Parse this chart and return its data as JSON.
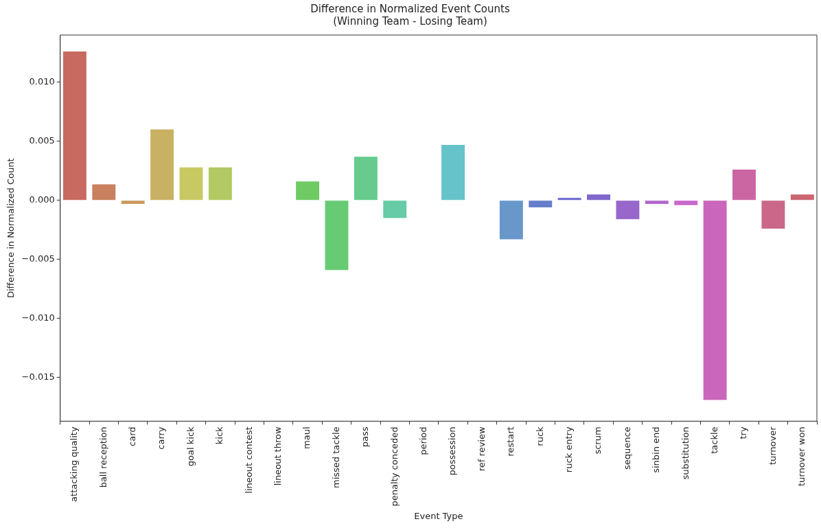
{
  "chart_data": {
    "type": "bar",
    "title": "Difference in Normalized Event Counts\n(Winning Team - Losing Team)",
    "xlabel": "Event Type",
    "ylabel": "Difference in Normalized Count",
    "categories": [
      "attacking quality",
      "ball reception",
      "card",
      "carry",
      "goal kick",
      "kick",
      "lineout contest",
      "lineout throw",
      "maul",
      "missed tackle",
      "pass",
      "penalty conceded",
      "period",
      "possession",
      "ref review",
      "restart",
      "ruck",
      "ruck entry",
      "scrum",
      "sequence",
      "sinbin end",
      "substitution",
      "tackle",
      "try",
      "turnover",
      "turnover won"
    ],
    "values": [
      0.0126,
      0.00135,
      -0.0003,
      0.006,
      0.0028,
      0.0028,
      0,
      0,
      0.0016,
      -0.0059,
      0.0037,
      -0.0015,
      0,
      0.0047,
      0,
      -0.0033,
      -0.0006,
      0.0002,
      0.0005,
      -0.0016,
      -0.0003,
      -0.0004,
      -0.0169,
      0.0026,
      -0.0024,
      0.0005
    ],
    "colors": [
      "#c96a60",
      "#c9805e",
      "#c99a5e",
      "#c9b163",
      "#c9c963",
      "#b2c964",
      "#9bc964",
      "#84c964",
      "#6fca64",
      "#66cb73",
      "#66cb8d",
      "#66cba6",
      "#66cbbf",
      "#67c3ca",
      "#66aacb",
      "#6897ca",
      "#667ecb",
      "#6666cb",
      "#7f66cb",
      "#9867cb",
      "#b067cb",
      "#c967cb",
      "#ca66bb",
      "#cb66a2",
      "#cb6889",
      "#cb6670"
    ],
    "ylim": [
      -0.0187,
      0.014
    ],
    "yticks": [
      {
        "value": -0.015,
        "label": "−0.015"
      },
      {
        "value": -0.01,
        "label": "−0.010"
      },
      {
        "value": -0.005,
        "label": "−0.005"
      },
      {
        "value": 0,
        "label": "0.000"
      },
      {
        "value": 0.005,
        "label": "0.005"
      },
      {
        "value": 0.01,
        "label": "0.010"
      }
    ],
    "grid": false,
    "legend": false
  }
}
